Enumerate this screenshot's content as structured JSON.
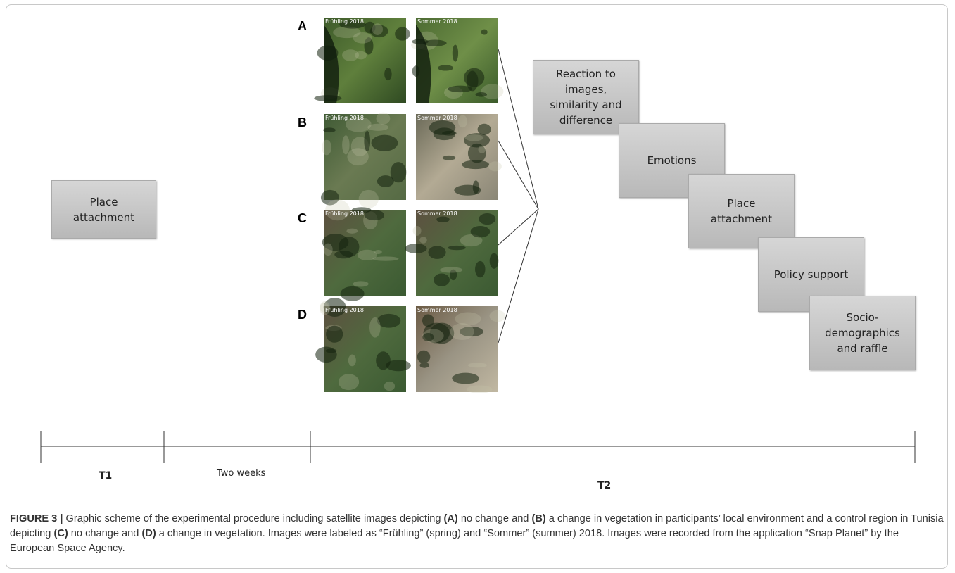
{
  "panels": [
    {
      "label": "A",
      "images": [
        "Frühling 2018",
        "Sommer 2018"
      ]
    },
    {
      "label": "B",
      "images": [
        "Frühling 2018",
        "Sommer 2018"
      ]
    },
    {
      "label": "C",
      "images": [
        "Frühling 2018",
        "Sommer 2018"
      ]
    },
    {
      "label": "D",
      "images": [
        "Frühling 2018",
        "Sommer 2018"
      ]
    }
  ],
  "t1_box": "Place attachment",
  "t2_boxes": [
    "Reaction to images, similarity and difference",
    "Emotions",
    "Place attachment",
    "Policy support",
    "Socio-demographics and raffle"
  ],
  "timeline": {
    "t1": "T1",
    "interval": "Two weeks",
    "t2": "T2"
  },
  "caption": {
    "label": "FIGURE 3 |",
    "parts": [
      " Graphic scheme of the experimental procedure including satellite images depicting ",
      "(A)",
      " no change and ",
      "(B)",
      " a change in vegetation in participants’ local environment and a control region in Tunisia depicting ",
      "(C)",
      " no change and ",
      "(D)",
      " a change in vegetation. Images were labeled as “Frühling” (spring) and “Sommer” (summer) 2018. Images were recorded from the application “Snap Planet” by the European Space Agency."
    ]
  }
}
